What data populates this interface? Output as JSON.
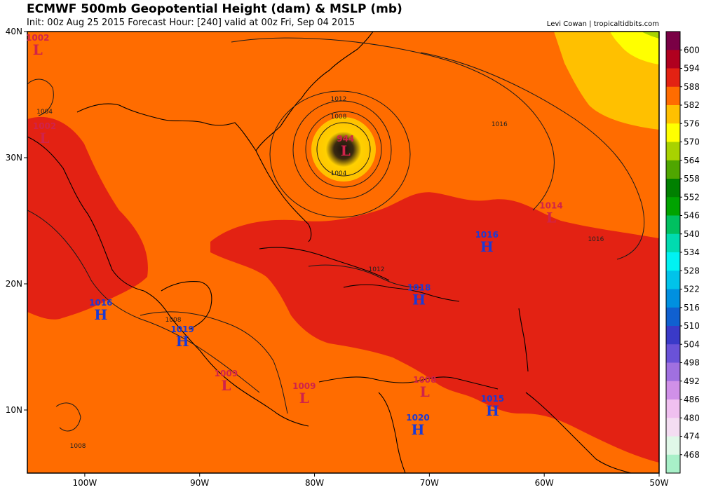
{
  "header": {
    "title": "ECMWF 500mb Geopotential Height (dam) & MSLP (mb)",
    "subtitle": "Init: 00z Aug 25 2015   Forecast Hour: [240]   valid at 00z Fri, Sep 04 2015",
    "credit": "Levi Cowan | tropicaltidbits.com"
  },
  "axes": {
    "lat_ticks": [
      {
        "label": "40N",
        "lat": 40
      },
      {
        "label": "30N",
        "lat": 30
      },
      {
        "label": "20N",
        "lat": 20
      },
      {
        "label": "10N",
        "lat": 10
      }
    ],
    "lon_ticks": [
      {
        "label": "100W",
        "lon": -100
      },
      {
        "label": "90W",
        "lon": -90
      },
      {
        "label": "80W",
        "lon": -80
      },
      {
        "label": "70W",
        "lon": -70
      },
      {
        "label": "60W",
        "lon": -60
      },
      {
        "label": "50W",
        "lon": -50
      }
    ],
    "lon_range": [
      -105,
      -50
    ],
    "lat_range": [
      5,
      40
    ]
  },
  "colorbar": {
    "levels": [
      "600",
      "594",
      "588",
      "582",
      "576",
      "570",
      "564",
      "558",
      "552",
      "546",
      "540",
      "534",
      "528",
      "522",
      "516",
      "510",
      "504",
      "498",
      "492",
      "486",
      "480",
      "474",
      "468"
    ],
    "colors": [
      "#7a0045",
      "#b0001f",
      "#e32213",
      "#ff6c00",
      "#ffc000",
      "#ffff00",
      "#a8d200",
      "#4fa600",
      "#008000",
      "#00a300",
      "#00c060",
      "#00dbb0",
      "#00f2f2",
      "#00c3ea",
      "#0090e0",
      "#1060d0",
      "#3a3ac8",
      "#6a52d8",
      "#a070e0",
      "#d090e8",
      "#f0c0f0",
      "#f4ddf2",
      "#e0f8e8",
      "#a8f0c8"
    ]
  },
  "systems": [
    {
      "type": "L",
      "value": "1002",
      "lon": -104.1,
      "lat": 38.6
    },
    {
      "type": "L",
      "value": "1002",
      "lon": -103.5,
      "lat": 31.6
    },
    {
      "type": "L",
      "value": "944",
      "lon": -77.3,
      "lat": 30.6
    },
    {
      "type": "L",
      "value": "1014",
      "lon": -59.4,
      "lat": 25.3
    },
    {
      "type": "H",
      "value": "1016",
      "lon": -65.0,
      "lat": 23.0
    },
    {
      "type": "H",
      "value": "1018",
      "lon": -70.9,
      "lat": 18.8
    },
    {
      "type": "H",
      "value": "1016",
      "lon": -98.6,
      "lat": 17.6
    },
    {
      "type": "H",
      "value": "1019",
      "lon": -91.5,
      "lat": 15.5
    },
    {
      "type": "L",
      "value": "1009",
      "lon": -87.7,
      "lat": 12.0
    },
    {
      "type": "L",
      "value": "1009",
      "lon": -80.9,
      "lat": 11.0
    },
    {
      "type": "L",
      "value": "1008",
      "lon": -70.4,
      "lat": 11.5
    },
    {
      "type": "H",
      "value": "1015",
      "lon": -64.5,
      "lat": 10.0
    },
    {
      "type": "H",
      "value": "1020",
      "lon": -71.0,
      "lat": 8.5
    }
  ],
  "isobar_labels": [
    {
      "text": "1004",
      "lon": -103.5,
      "lat": 33.5
    },
    {
      "text": "1012",
      "lon": -77.9,
      "lat": 34.5
    },
    {
      "text": "1008",
      "lon": -77.9,
      "lat": 33.1
    },
    {
      "text": "1004",
      "lon": -77.9,
      "lat": 28.6
    },
    {
      "text": "1016",
      "lon": -63.9,
      "lat": 32.5
    },
    {
      "text": "1016",
      "lon": -55.5,
      "lat": 23.4
    },
    {
      "text": "1012",
      "lon": -74.6,
      "lat": 21.0
    },
    {
      "text": "1008",
      "lon": -92.3,
      "lat": 17.0
    },
    {
      "text": "1008",
      "lon": -100.6,
      "lat": 7.0
    }
  ]
}
